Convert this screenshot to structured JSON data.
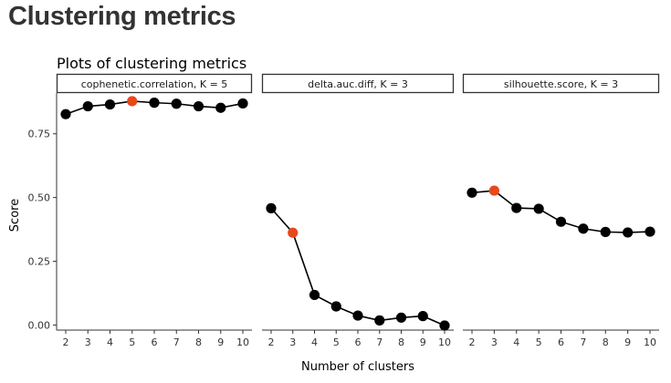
{
  "page": {
    "title": "Clustering metrics"
  },
  "colors": {
    "point": "#000000",
    "highlight": "#e8481b",
    "strip_border": "#333333",
    "line": "#000000"
  },
  "chart_data": {
    "type": "line",
    "title": "Plots of clustering metrics",
    "xlabel": "Number of clusters",
    "ylabel": "Score",
    "ylim": [
      -0.02,
      0.91
    ],
    "yticks": [
      0.0,
      0.25,
      0.5,
      0.75
    ],
    "ytick_labels": [
      "0.00",
      "0.25",
      "0.50",
      "0.75"
    ],
    "xticks": [
      2,
      3,
      4,
      5,
      6,
      7,
      8,
      9,
      10
    ],
    "grid": false,
    "panels": [
      {
        "strip": "cophenetic.correlation, K = 5",
        "x": [
          2,
          3,
          4,
          5,
          6,
          7,
          8,
          9,
          10
        ],
        "y": [
          0.827,
          0.858,
          0.865,
          0.878,
          0.872,
          0.868,
          0.858,
          0.852,
          0.869
        ],
        "highlight_x": 5
      },
      {
        "strip": "delta.auc.diff, K = 3",
        "x": [
          2,
          3,
          4,
          5,
          6,
          7,
          8,
          9,
          10
        ],
        "y": [
          0.458,
          0.362,
          0.118,
          0.073,
          0.037,
          0.018,
          0.029,
          0.035,
          -0.002
        ],
        "highlight_x": 3
      },
      {
        "strip": "silhouette.score, K = 3",
        "x": [
          2,
          3,
          4,
          5,
          6,
          7,
          8,
          9,
          10
        ],
        "y": [
          0.519,
          0.527,
          0.459,
          0.456,
          0.405,
          0.378,
          0.365,
          0.363,
          0.366
        ],
        "highlight_x": 3
      }
    ]
  }
}
